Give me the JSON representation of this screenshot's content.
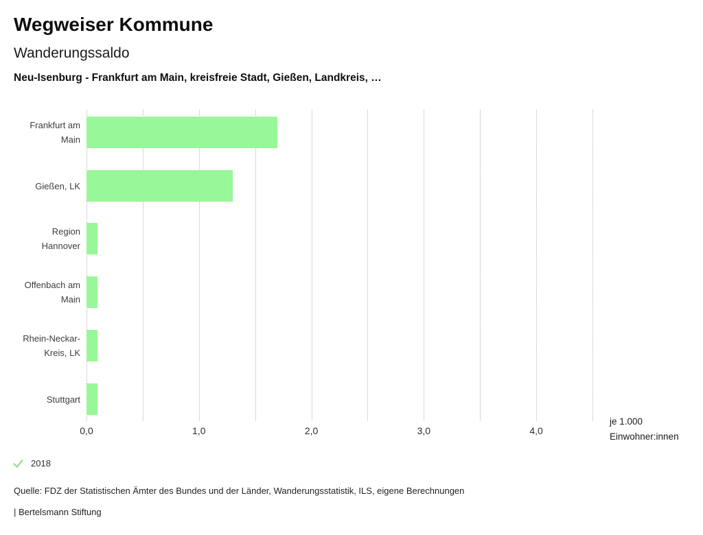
{
  "header": {
    "title": "Wegweiser Kommune",
    "subtitle": "Wanderungssaldo",
    "context": "Neu-Isenburg - Frankfurt am Main, kreisfreie Stadt, Gießen, Landkreis, …"
  },
  "chart_data": {
    "type": "bar",
    "orientation": "horizontal",
    "title": "Wanderungssaldo",
    "categories": [
      "Frankfurt am Main",
      "Gießen, LK",
      "Region Hannover",
      "Offenbach am Main",
      "Rhein-Neckar-Kreis, LK",
      "Stuttgart"
    ],
    "series": [
      {
        "name": "2018",
        "values": [
          1.7,
          1.3,
          0.1,
          0.1,
          0.1,
          0.1
        ]
      }
    ],
    "xlim": [
      0,
      4.5
    ],
    "x_ticks": [
      {
        "value": 0,
        "label": "0,0"
      },
      {
        "value": 1,
        "label": "1,0"
      },
      {
        "value": 2,
        "label": "2,0"
      },
      {
        "value": 3,
        "label": "3,0"
      },
      {
        "value": 4,
        "label": "4,0"
      }
    ],
    "gridline_step": 0.5,
    "grid": "vertical-dotted",
    "unit_label": {
      "line1": "je 1.000",
      "line2": "Einwohner:innen"
    },
    "bar_color": "#98f798",
    "legend": {
      "position": "bottom-left",
      "items": [
        {
          "label": "2018",
          "checked": true,
          "check_color": "#90dc90"
        }
      ]
    }
  },
  "footer": {
    "source": "Quelle: FDZ der Statistischen Ämter des Bundes und der Länder, Wanderungsstatistik, ILS, eigene Berechnungen",
    "attribution": "| Bertelsmann Stiftung"
  }
}
